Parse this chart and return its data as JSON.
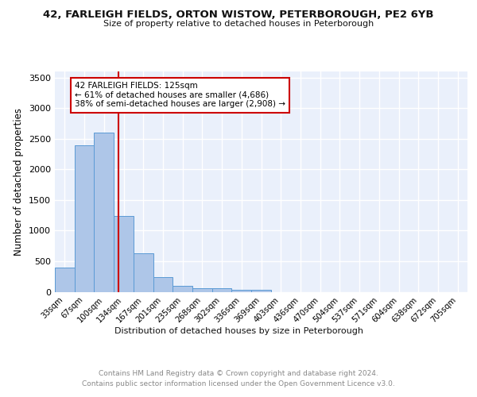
{
  "title": "42, FARLEIGH FIELDS, ORTON WISTOW, PETERBOROUGH, PE2 6YB",
  "subtitle": "Size of property relative to detached houses in Peterborough",
  "xlabel": "Distribution of detached houses by size in Peterborough",
  "ylabel": "Number of detached properties",
  "bar_labels": [
    "33sqm",
    "67sqm",
    "100sqm",
    "134sqm",
    "167sqm",
    "201sqm",
    "235sqm",
    "268sqm",
    "302sqm",
    "336sqm",
    "369sqm",
    "403sqm",
    "436sqm",
    "470sqm",
    "504sqm",
    "537sqm",
    "571sqm",
    "604sqm",
    "638sqm",
    "672sqm",
    "705sqm"
  ],
  "bar_values": [
    390,
    2390,
    2600,
    1240,
    630,
    245,
    100,
    60,
    55,
    35,
    35,
    0,
    0,
    0,
    0,
    0,
    0,
    0,
    0,
    0,
    0
  ],
  "bar_color": "#aec6e8",
  "bar_edge_color": "#5b9bd5",
  "bg_color": "#eaf0fb",
  "grid_color": "#ffffff",
  "annotation_text": "42 FARLEIGH FIELDS: 125sqm\n← 61% of detached houses are smaller (4,686)\n38% of semi-detached houses are larger (2,908) →",
  "annotation_box_color": "#ffffff",
  "annotation_box_edge": "#cc0000",
  "ylim": [
    0,
    3600
  ],
  "yticks": [
    0,
    500,
    1000,
    1500,
    2000,
    2500,
    3000,
    3500
  ],
  "footer1": "Contains HM Land Registry data © Crown copyright and database right 2024.",
  "footer2": "Contains public sector information licensed under the Open Government Licence v3.0."
}
